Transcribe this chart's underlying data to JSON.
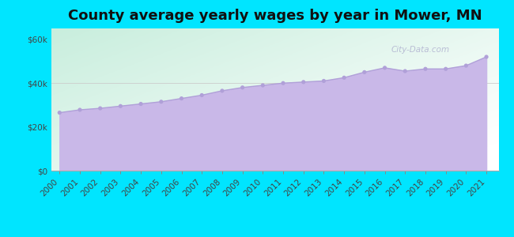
{
  "title": "County average yearly wages by year in Mower, MN",
  "years": [
    2000,
    2001,
    2002,
    2003,
    2004,
    2005,
    2006,
    2007,
    2008,
    2009,
    2010,
    2011,
    2012,
    2013,
    2014,
    2015,
    2016,
    2017,
    2018,
    2019,
    2020,
    2021
  ],
  "wages": [
    26500,
    27800,
    28500,
    29500,
    30500,
    31500,
    33000,
    34500,
    36500,
    38000,
    39000,
    40000,
    40500,
    41000,
    42500,
    45000,
    47000,
    45500,
    46500,
    46500,
    48000,
    52000
  ],
  "fill_color": "#c9b8e8",
  "line_color": "#b0a0d8",
  "marker_color": "#b0a0d8",
  "bg_outer": "#00e5ff",
  "yticks": [
    0,
    20000,
    40000,
    60000
  ],
  "ylim": [
    0,
    65000
  ],
  "watermark": "City-Data.com",
  "title_fontsize": 13,
  "tick_fontsize": 7.5
}
